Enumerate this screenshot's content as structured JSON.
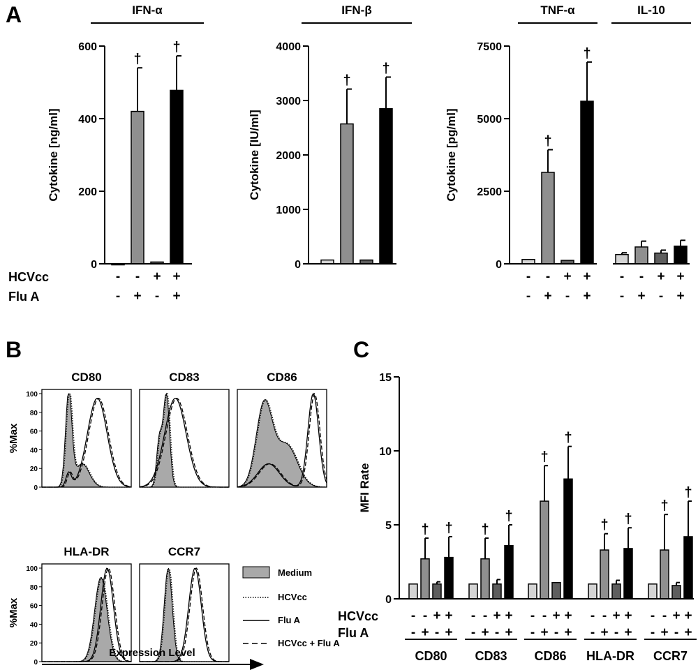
{
  "colors": {
    "medium": "#d4d4d4",
    "flu": "#8f8f8f",
    "hcv": "#5e5e5e",
    "both": "#000000",
    "histo_fill": "#a9a9a9"
  },
  "signs": {
    "minus": "-",
    "plus": "+"
  },
  "chart_data": [
    {
      "type": "bar",
      "panel": "A",
      "title": "IFN-α",
      "ylabel": "Cytokine [ng/ml]",
      "ylim": [
        0,
        600
      ],
      "yticks": [
        "0",
        "200",
        "400",
        "600"
      ],
      "row_labels": [
        "HCVcc",
        "Flu A"
      ],
      "groups": [
        {
          "label": "IFN-α",
          "values": [
            0,
            420,
            5,
            478
          ],
          "errors": [
            0,
            120,
            0,
            95
          ],
          "dagger": [
            false,
            true,
            false,
            true
          ],
          "hcv": [
            "-",
            "-",
            "+",
            "+"
          ],
          "flu": [
            "-",
            "+",
            "-",
            "+"
          ]
        }
      ]
    },
    {
      "type": "bar",
      "panel": "A",
      "title": "IFN-β",
      "ylabel": "Cytokine [IU/ml]",
      "ylim": [
        0,
        4000
      ],
      "yticks": [
        "0",
        "1000",
        "2000",
        "3000",
        "4000"
      ],
      "groups": [
        {
          "label": "IFN-β",
          "values": [
            70,
            2570,
            70,
            2850
          ],
          "errors": [
            0,
            640,
            0,
            580
          ],
          "dagger": [
            false,
            true,
            false,
            true
          ],
          "hcv": [
            "-",
            "-",
            "+",
            "+"
          ],
          "flu": [
            "-",
            "+",
            "-",
            "+"
          ]
        }
      ]
    },
    {
      "type": "bar",
      "panel": "A",
      "title": "",
      "ylabel": "Cytokine [pg/ml]",
      "ylim": [
        0,
        7500
      ],
      "yticks": [
        "0",
        "2500",
        "5000",
        "7500"
      ],
      "groups": [
        {
          "label": "TNF-α",
          "values": [
            150,
            3150,
            120,
            5600
          ],
          "errors": [
            0,
            780,
            0,
            1350
          ],
          "dagger": [
            false,
            true,
            false,
            true
          ],
          "hcv": [
            "-",
            "-",
            "+",
            "+"
          ],
          "flu": [
            "-",
            "+",
            "-",
            "+"
          ]
        },
        {
          "label": "IL-10",
          "values": [
            320,
            580,
            370,
            610
          ],
          "errors": [
            60,
            200,
            100,
            200
          ],
          "dagger": [
            false,
            false,
            false,
            false
          ],
          "hcv": [
            "-",
            "-",
            "+",
            "+"
          ],
          "flu": [
            "-",
            "+",
            "-",
            "+"
          ]
        }
      ]
    },
    {
      "type": "bar",
      "panel": "C",
      "title": "",
      "ylabel": "MFI Rate",
      "ylim": [
        0,
        15
      ],
      "yticks": [
        "0",
        "5",
        "10",
        "15"
      ],
      "row_labels": [
        "HCVcc",
        "Flu A"
      ],
      "groups": [
        {
          "label": "CD80",
          "values": [
            1,
            2.7,
            1,
            2.8
          ],
          "errors": [
            0,
            1.4,
            0.15,
            1.4
          ],
          "dagger": [
            false,
            true,
            false,
            true
          ],
          "hcv": [
            "-",
            "-",
            "+",
            "+"
          ],
          "flu": [
            "-",
            "+",
            "-",
            "+"
          ]
        },
        {
          "label": "CD83",
          "values": [
            1,
            2.7,
            1,
            3.6
          ],
          "errors": [
            0,
            1.4,
            0.3,
            1.4
          ],
          "dagger": [
            false,
            true,
            false,
            true
          ],
          "hcv": [
            "-",
            "-",
            "+",
            "+"
          ],
          "flu": [
            "-",
            "+",
            "-",
            "+"
          ]
        },
        {
          "label": "CD86",
          "values": [
            1,
            6.6,
            1.1,
            8.1
          ],
          "errors": [
            0,
            2.4,
            0,
            2.2
          ],
          "dagger": [
            false,
            true,
            false,
            true
          ],
          "hcv": [
            "-",
            "-",
            "+",
            "+"
          ],
          "flu": [
            "-",
            "+",
            "-",
            "+"
          ]
        },
        {
          "label": "HLA-DR",
          "values": [
            1,
            3.3,
            1,
            3.4
          ],
          "errors": [
            0,
            1.1,
            0.25,
            1.4
          ],
          "dagger": [
            false,
            true,
            false,
            true
          ],
          "hcv": [
            "-",
            "-",
            "+",
            "+"
          ],
          "flu": [
            "-",
            "+",
            "-",
            "+"
          ]
        },
        {
          "label": "CCR7",
          "values": [
            1,
            3.3,
            0.9,
            4.2
          ],
          "errors": [
            0,
            2.4,
            0.2,
            2.4
          ],
          "dagger": [
            false,
            true,
            false,
            true
          ],
          "hcv": [
            "-",
            "-",
            "+",
            "+"
          ],
          "flu": [
            "-",
            "+",
            "-",
            "+"
          ]
        }
      ]
    }
  ],
  "flow": {
    "panel": "B",
    "ylabel": "%Max",
    "xlabel": "Expression Level",
    "yticks": [
      "0",
      "20",
      "40",
      "60",
      "80",
      "100"
    ],
    "markers": [
      "CD80",
      "CD83",
      "CD86",
      "HLA-DR",
      "CCR7"
    ],
    "legend": [
      "Medium",
      "HCVcc",
      "Flu A",
      "HCVcc + Flu A"
    ]
  }
}
